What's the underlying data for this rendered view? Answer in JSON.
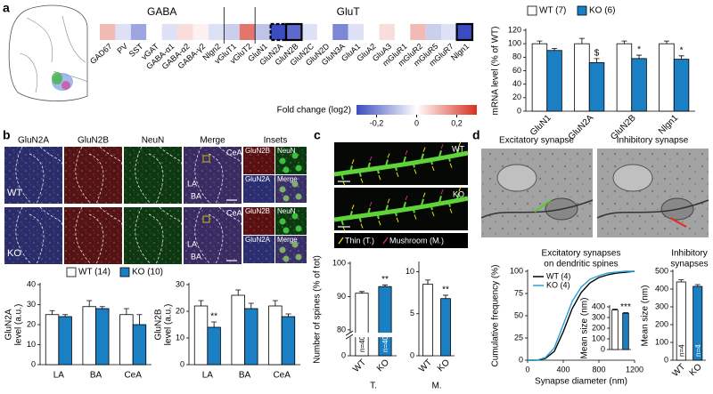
{
  "panel_labels": [
    "a",
    "b",
    "c",
    "d"
  ],
  "heatmap": {
    "group_labels": [
      "GABA",
      "GluT"
    ],
    "genes": [
      "GAD67",
      "PV",
      "SST",
      "vGAT",
      "GABA-α1",
      "GABA-α2",
      "GABA-γ2",
      "Nlgn2",
      "vGluT1",
      "vGluT2",
      "GluN1",
      "GluN2A",
      "GluN2B",
      "GluN2C",
      "GluN2D",
      "GluN3A",
      "GluA1",
      "GluA2",
      "GluA3",
      "mGluR1",
      "mGluR2",
      "mGluR5",
      "mGluR7",
      "Nlgn1"
    ],
    "values": [
      0.1,
      -0.05,
      -0.15,
      0,
      -0.05,
      0.05,
      0.02,
      -0.05,
      -0.08,
      0.2,
      -0.1,
      -0.3,
      -0.25,
      -0.05,
      0,
      -0.2,
      -0.05,
      0,
      0.05,
      0,
      0.1,
      -0.08,
      -0.05,
      -0.3
    ],
    "colormap": [
      "#3b4cc0",
      "#ffffff",
      "#d6301f"
    ],
    "colorbar_title": "Fold change (log2)",
    "colorbar_lim": [
      -0.3,
      0.3
    ],
    "colorbar_ticks": [
      {
        "value": -0.2,
        "label": "-0,2"
      },
      0,
      {
        "value": 0.2,
        "label": "0,2"
      }
    ]
  },
  "images_b": {
    "column_titles": [
      "GluN2A",
      "GluN2B",
      "NeuN",
      "Merge",
      "Insets"
    ],
    "row_labels": [
      "WT",
      "KO"
    ],
    "region_labels": [
      "CeA",
      "LA",
      "BA"
    ],
    "inset_labels": [
      "GluN2B",
      "NeuN",
      "GluN2A",
      "Merge"
    ]
  },
  "images_c": {
    "row_labels": [
      "WT",
      "KO"
    ],
    "legend": [
      "Thin (T.)",
      "Mushroom (M.)"
    ],
    "legend_colors": [
      "#f2e600",
      "#e0208a"
    ]
  },
  "images_d": {
    "titles": [
      "Excitatory synapse",
      "Inhibitory synapse"
    ]
  },
  "chart_data": [
    {
      "type": "bar",
      "ylabel": [
        "mRNA level (% of WT)"
      ],
      "categories": [
        "GluN1",
        "GluN2A",
        "GluN2B",
        "Nlgn1"
      ],
      "series": [
        {
          "name": "WT (7)",
          "color": "#ffffff",
          "values": [
            100,
            100,
            100,
            100
          ],
          "errors": [
            4,
            8,
            4,
            4
          ]
        },
        {
          "name": "KO (6)",
          "color": "#1b7fc4",
          "values": [
            90,
            72,
            78,
            77
          ],
          "errors": [
            3,
            6,
            5,
            5
          ]
        }
      ],
      "annotations": [
        null,
        "$",
        "*",
        "*"
      ],
      "ylim": [
        0,
        120
      ],
      "yticks": [
        0,
        20,
        40,
        60,
        80,
        100,
        120
      ]
    },
    {
      "type": "bar",
      "ylabel": [
        "GluN2A",
        "level (a.u.)"
      ],
      "categories": [
        "LA",
        "BA",
        "CeA"
      ],
      "series": [
        {
          "name": "WT (14)",
          "color": "#ffffff",
          "values": [
            25,
            29,
            25
          ],
          "errors": [
            2,
            3,
            3
          ]
        },
        {
          "name": "KO (10)",
          "color": "#1b7fc4",
          "values": [
            24,
            28,
            20
          ],
          "errors": [
            1,
            1,
            5
          ]
        }
      ],
      "ylim": [
        0,
        40
      ],
      "yticks": [
        0,
        10,
        20,
        30,
        40
      ]
    },
    {
      "type": "bar",
      "ylabel": [
        "GluN2B",
        "level (a.u.)"
      ],
      "categories": [
        "LA",
        "BA",
        "CeA"
      ],
      "series": [
        {
          "color": "#ffffff",
          "values": [
            22,
            26,
            22
          ],
          "errors": [
            2,
            2,
            2
          ]
        },
        {
          "color": "#1b7fc4",
          "values": [
            14,
            21,
            18
          ],
          "errors": [
            2,
            2,
            1
          ]
        }
      ],
      "annotations": [
        "**",
        null,
        null
      ],
      "ylim": [
        0,
        30
      ],
      "yticks": [
        0,
        10,
        20,
        30
      ]
    },
    {
      "type": "bar",
      "ylabel": [
        "Number of spines (% of tot)"
      ],
      "xlabel": "T.",
      "categories": [
        "WT",
        "KO"
      ],
      "values": [
        91,
        93
      ],
      "errors": [
        0.5,
        0.5
      ],
      "colors": [
        "#ffffff",
        "#1b7fc4"
      ],
      "bar_texts": [
        "n=40",
        "n=40"
      ],
      "annotations": [
        null,
        "**"
      ],
      "ylim": [
        0,
        100
      ],
      "ybreak": [
        10,
        80
      ],
      "yticks": [
        0,
        80,
        90,
        100
      ]
    },
    {
      "type": "bar",
      "xlabel": "M.",
      "categories": [
        "WT",
        "KO"
      ],
      "values": [
        8.5,
        6.8
      ],
      "errors": [
        0.5,
        0.4
      ],
      "colors": [
        "#ffffff",
        "#1b7fc4"
      ],
      "annotations": [
        null,
        "**"
      ],
      "ylim": [
        0,
        11
      ],
      "yticks": [
        0,
        5,
        10
      ]
    },
    {
      "type": "line",
      "title": [
        "Excitatory synapses",
        "on dendritic spines"
      ],
      "xlabel": "Synapse diameter (nm)",
      "ylabel": [
        "Cumulative frequency (%)"
      ],
      "x": [
        0,
        100,
        200,
        300,
        400,
        500,
        600,
        700,
        800,
        900,
        1000,
        1100,
        1200
      ],
      "series": [
        {
          "name": "WT (4)",
          "color": "#000000",
          "values": [
            0,
            0,
            2,
            10,
            32,
            58,
            76,
            87,
            93,
            96,
            98,
            99,
            100
          ]
        },
        {
          "name": "KO (4)",
          "color": "#2a9fd8",
          "values": [
            0,
            0,
            3,
            14,
            40,
            66,
            82,
            91,
            95,
            98,
            99,
            100,
            100
          ]
        }
      ],
      "xlim": [
        0,
        1200
      ],
      "xticks": [
        0,
        400,
        800,
        1200
      ],
      "ylim": [
        0,
        100
      ],
      "yticks": [
        0,
        25,
        50,
        75,
        100
      ]
    },
    {
      "type": "bar",
      "ylabel": [
        "Mean size (nm)"
      ],
      "values": [
        370,
        340
      ],
      "errors": [
        8,
        6
      ],
      "colors": [
        "#ffffff",
        "#1b7fc4"
      ],
      "annotations": [
        null,
        "***"
      ],
      "ylim": [
        0,
        400
      ],
      "yticks": [
        0,
        100,
        200,
        300,
        400
      ]
    },
    {
      "type": "bar",
      "title": [
        "Inhibitory",
        "synapses"
      ],
      "ylabel": [
        "Mean size (nm)"
      ],
      "categories": [
        "WT",
        "KO"
      ],
      "values": [
        440,
        415
      ],
      "errors": [
        12,
        10
      ],
      "colors": [
        "#ffffff",
        "#1b7fc4"
      ],
      "bar_texts": [
        "n=4",
        "n=4"
      ],
      "ylim": [
        0,
        500
      ],
      "yticks": [
        0,
        100,
        200,
        300,
        400,
        500
      ]
    }
  ]
}
